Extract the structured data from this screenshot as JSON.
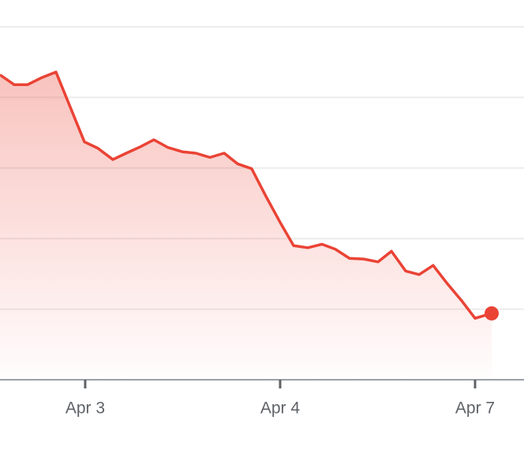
{
  "chart_data": {
    "type": "area",
    "x": [
      -0.437,
      -0.364,
      -0.296,
      -0.223,
      -0.15,
      -0.004,
      0.065,
      0.142,
      0.211,
      0.283,
      0.352,
      0.425,
      0.498,
      0.567,
      0.64,
      0.713,
      0.781,
      0.854,
      0.927,
      1.004,
      1.069,
      1.142,
      1.215,
      1.283,
      1.356,
      1.429,
      1.502,
      1.571,
      1.644,
      1.713,
      1.785,
      1.858,
      1.931,
      2.0,
      2.085
    ],
    "values": [
      4.32,
      4.18,
      4.18,
      4.28,
      4.36,
      3.37,
      3.28,
      3.12,
      3.21,
      3.3,
      3.4,
      3.29,
      3.23,
      3.21,
      3.15,
      3.21,
      3.06,
      2.99,
      2.6,
      2.21,
      1.9,
      1.87,
      1.92,
      1.85,
      1.72,
      1.71,
      1.67,
      1.82,
      1.54,
      1.49,
      1.62,
      1.36,
      1.12,
      0.87,
      0.94
    ],
    "color": "#ea4335",
    "xlim": [
      -0.437,
      2.251
    ],
    "ylim": [
      0,
      5.38
    ],
    "xticks": [
      {
        "value": 0,
        "label": "Apr 3"
      },
      {
        "value": 1,
        "label": "Apr 4"
      },
      {
        "value": 2,
        "label": "Apr 7"
      }
    ],
    "ygrid": [
      1,
      2,
      3,
      4,
      5
    ],
    "grid": true
  }
}
